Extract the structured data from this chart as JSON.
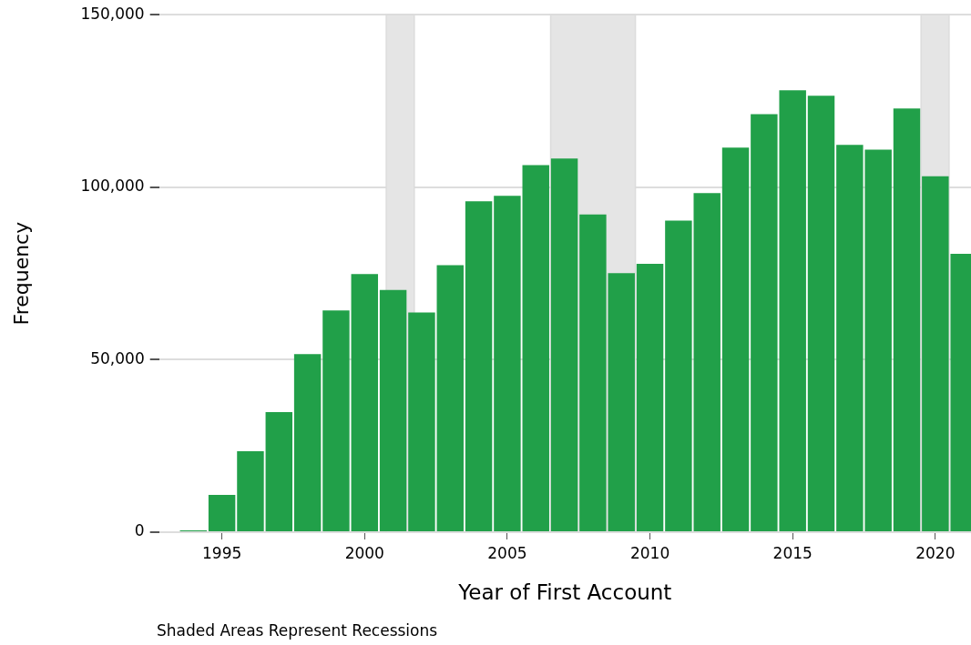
{
  "chart_data": {
    "type": "histogram",
    "xlabel": "Year of First Account",
    "ylabel": "Frequency",
    "annotations": [
      "Shaded Areas Represent Recessions"
    ],
    "bins": [
      1993.5,
      1994.5,
      1995.5,
      1996.5,
      1997.5,
      1998.5,
      1999.5,
      2000.5,
      2001.5,
      2002.5,
      2003.5,
      2004.5,
      2005.5,
      2006.5,
      2007.5,
      2008.5,
      2009.5,
      2010.5,
      2011.5,
      2012.5,
      2013.5,
      2014.5,
      2015.5,
      2016.5,
      2017.5,
      2018.5,
      2019.5,
      2020.5,
      2021.5
    ],
    "values": [
      500,
      10800,
      23500,
      34800,
      51600,
      64300,
      74800,
      70200,
      63700,
      77400,
      95900,
      97500,
      106400,
      108300,
      92100,
      75100,
      77800,
      90300,
      98300,
      111500,
      121200,
      128100,
      126500,
      112300,
      110900,
      122800,
      103200,
      80700
    ],
    "color": "#21a049",
    "xlim": [
      1992.8,
      2021.25
    ],
    "xticks": [
      1995,
      2000,
      2005,
      2010,
      2015,
      2020
    ],
    "ylim": [
      0,
      150000
    ],
    "yticks": [
      {
        "value": 0,
        "label": "0"
      },
      {
        "value": 50000,
        "label": "50,000"
      },
      {
        "value": 100000,
        "label": "100,000"
      },
      {
        "value": 150000,
        "label": "150,000"
      }
    ],
    "bands": [
      {
        "axis": "x",
        "from": 2000.76,
        "to": 2001.74,
        "color": "#e5e5e5"
      },
      {
        "axis": "x",
        "from": 2006.52,
        "to": 2009.49,
        "color": "#e5e5e5"
      },
      {
        "axis": "x",
        "from": 2019.5,
        "to": 2020.48,
        "color": "#e5e5e5"
      }
    ],
    "grid": "y",
    "legend": false
  }
}
